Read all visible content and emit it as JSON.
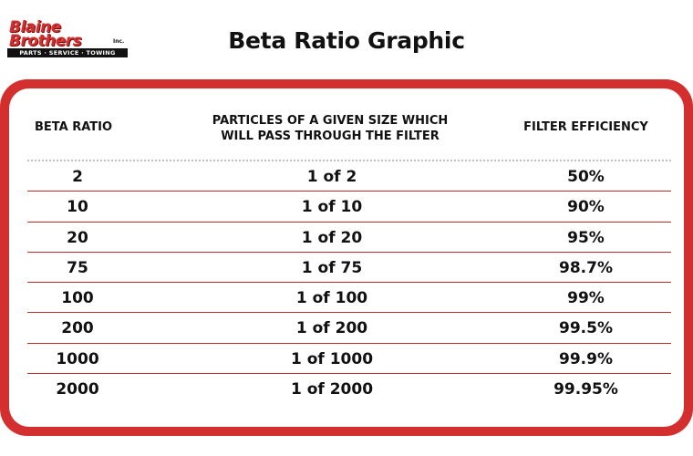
{
  "logo": {
    "line1": "Blaine",
    "line2": "Brothers",
    "inc": "Inc.",
    "tagline": "PARTS · SERVICE · TOWING"
  },
  "title": "Beta Ratio Graphic",
  "table": {
    "headers": {
      "beta_ratio": "BETA RATIO",
      "particles_line1": "PARTICLES OF A GIVEN SIZE WHICH",
      "particles_line2": "WILL PASS THROUGH THE FILTER",
      "efficiency": "FILTER EFFICIENCY"
    },
    "rows": [
      {
        "beta": "2",
        "particles": "1 of 2",
        "efficiency": "50%"
      },
      {
        "beta": "10",
        "particles": "1 of 10",
        "efficiency": "90%"
      },
      {
        "beta": "20",
        "particles": "1 of 20",
        "efficiency": "95%"
      },
      {
        "beta": "75",
        "particles": "1 of 75",
        "efficiency": "98.7%"
      },
      {
        "beta": "100",
        "particles": "1 of 100",
        "efficiency": "99%"
      },
      {
        "beta": "200",
        "particles": "1 of 200",
        "efficiency": "99.5%"
      },
      {
        "beta": "1000",
        "particles": "1 of 1000",
        "efficiency": "99.9%"
      },
      {
        "beta": "2000",
        "particles": "1 of 2000",
        "efficiency": "99.95%"
      }
    ]
  },
  "colors": {
    "brand_red": "#d32f2f",
    "text": "#111111",
    "background": "#ffffff"
  }
}
